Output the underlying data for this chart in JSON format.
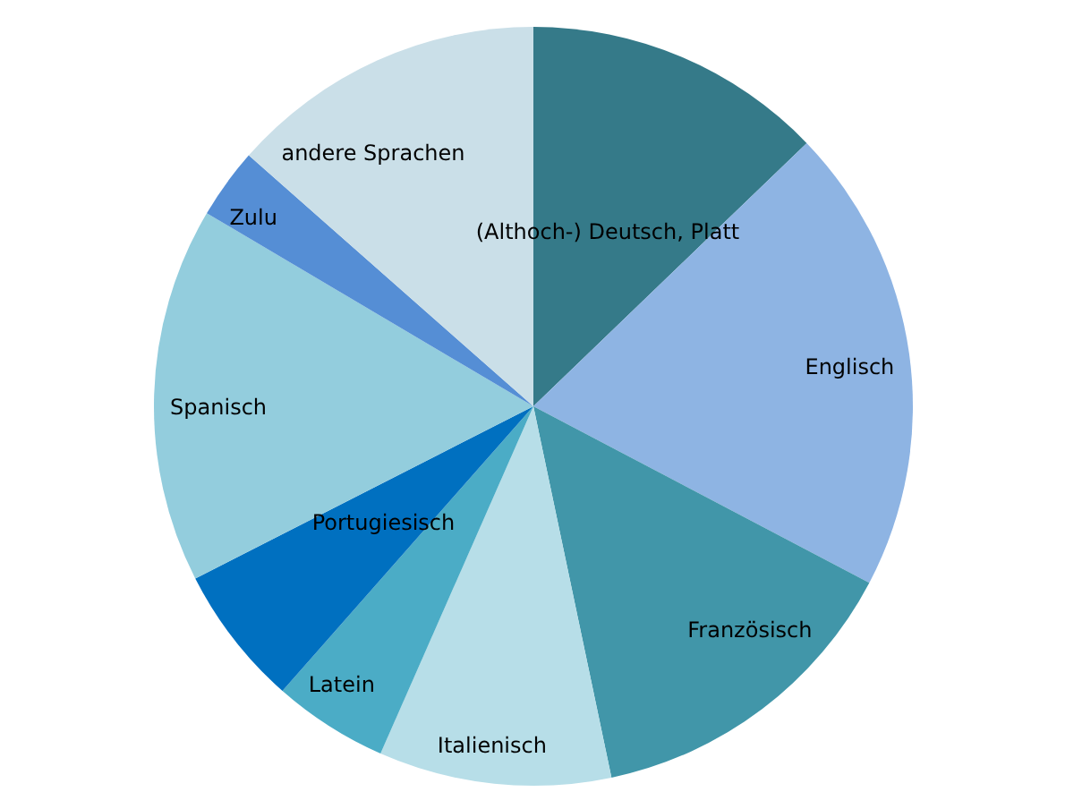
{
  "chart_data": {
    "type": "pie",
    "categories": [
      "(Althoch-) Deutsch, Platt",
      "Englisch",
      "Französisch",
      "Italienisch",
      "Latein",
      "Portugiesisch",
      "Spanisch",
      "Zulu",
      "andere Sprachen"
    ],
    "values": [
      12.8,
      19.9,
      14.0,
      9.9,
      4.9,
      6.0,
      16.0,
      3.0,
      13.5
    ],
    "colors": [
      "#357a89",
      "#8eb4e3",
      "#4196a9",
      "#b7dee8",
      "#4bacc6",
      "#0070c0",
      "#93cddd",
      "#558ed5",
      "#cadfe8"
    ]
  }
}
